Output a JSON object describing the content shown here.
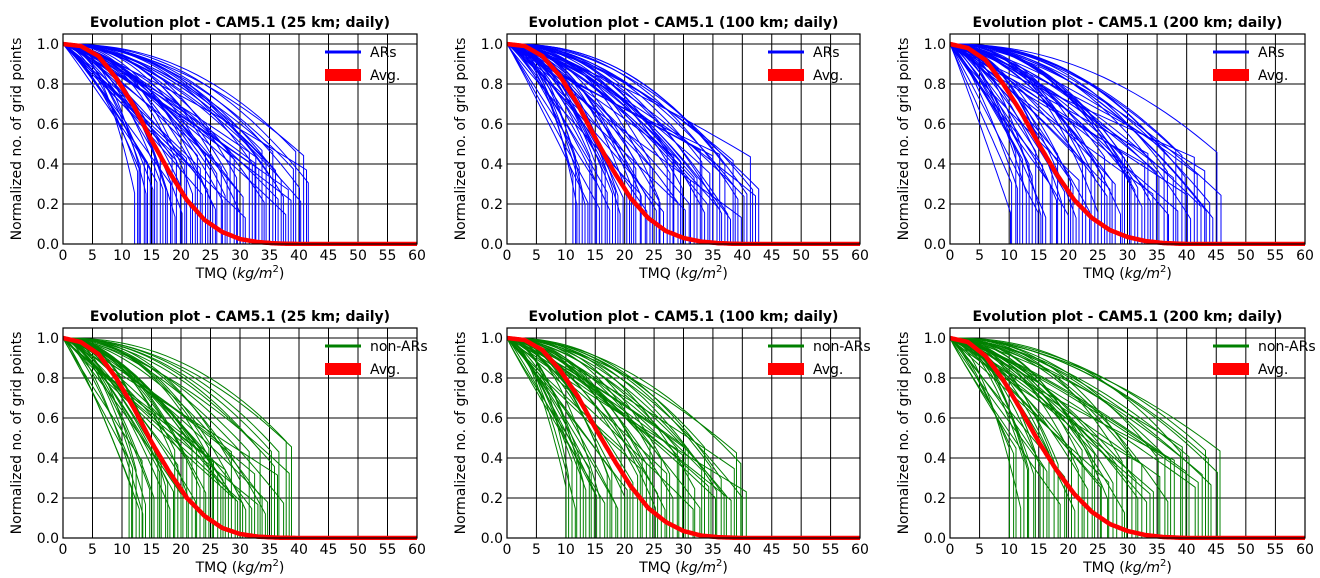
{
  "chart_data": [
    {
      "type": "line",
      "title": "Evolution plot - CAM5.1 (25 km; daily)",
      "xlabel": "TMQ (kg/m²)",
      "ylabel": "Normalized no. of grid points",
      "xlim": [
        0,
        60
      ],
      "ylim": [
        0,
        1.05
      ],
      "xticks": [
        "0",
        "5",
        "10",
        "15",
        "20",
        "25",
        "30",
        "35",
        "40",
        "45",
        "50",
        "55",
        "60"
      ],
      "yticks": [
        "0.0",
        "0.2",
        "0.4",
        "0.6",
        "0.8",
        "1.0"
      ],
      "grid": true,
      "legend_position": "top-right",
      "series": [
        {
          "name": "ARs",
          "color": "#0000ff",
          "count": 70,
          "span": [
            12,
            42
          ]
        },
        {
          "name": "Avg.",
          "color": "#ff0000",
          "x": [
            0,
            3,
            6,
            9,
            12,
            15,
            18,
            21,
            24,
            27,
            30,
            33,
            36,
            40,
            60
          ],
          "values": [
            1.0,
            0.99,
            0.94,
            0.83,
            0.69,
            0.52,
            0.36,
            0.22,
            0.12,
            0.06,
            0.025,
            0.01,
            0.003,
            0,
            0
          ]
        }
      ]
    },
    {
      "type": "line",
      "title": "Evolution plot - CAM5.1 (100 km; daily)",
      "xlabel": "TMQ (kg/m²)",
      "ylabel": "Normalized no. of grid points",
      "xlim": [
        0,
        60
      ],
      "ylim": [
        0,
        1.05
      ],
      "xticks": [
        "0",
        "5",
        "10",
        "15",
        "20",
        "25",
        "30",
        "35",
        "40",
        "45",
        "50",
        "55",
        "60"
      ],
      "yticks": [
        "0.0",
        "0.2",
        "0.4",
        "0.6",
        "0.8",
        "1.0"
      ],
      "grid": true,
      "legend_position": "top-right",
      "series": [
        {
          "name": "ARs",
          "color": "#0000ff",
          "count": 70,
          "span": [
            11,
            43
          ]
        },
        {
          "name": "Avg.",
          "color": "#ff0000",
          "x": [
            0,
            3,
            6,
            9,
            12,
            15,
            18,
            21,
            24,
            27,
            30,
            33,
            36,
            40,
            60
          ],
          "values": [
            1.0,
            0.99,
            0.94,
            0.84,
            0.7,
            0.53,
            0.37,
            0.23,
            0.13,
            0.065,
            0.03,
            0.012,
            0.004,
            0,
            0
          ]
        }
      ]
    },
    {
      "type": "line",
      "title": "Evolution plot - CAM5.1 (200 km; daily)",
      "xlabel": "TMQ (kg/m²)",
      "ylabel": "Normalized no. of grid points",
      "xlim": [
        0,
        60
      ],
      "ylim": [
        0,
        1.05
      ],
      "xticks": [
        "0",
        "5",
        "10",
        "15",
        "20",
        "25",
        "30",
        "35",
        "40",
        "45",
        "50",
        "55",
        "60"
      ],
      "yticks": [
        "0.0",
        "0.2",
        "0.4",
        "0.6",
        "0.8",
        "1.0"
      ],
      "grid": true,
      "legend_position": "top-right",
      "series": [
        {
          "name": "ARs",
          "color": "#0000ff",
          "count": 70,
          "span": [
            10,
            46
          ]
        },
        {
          "name": "Avg.",
          "color": "#ff0000",
          "x": [
            0,
            3,
            6,
            9,
            12,
            15,
            18,
            21,
            24,
            27,
            30,
            33,
            36,
            40,
            60
          ],
          "values": [
            1.0,
            0.98,
            0.92,
            0.8,
            0.66,
            0.5,
            0.35,
            0.22,
            0.13,
            0.07,
            0.035,
            0.015,
            0.005,
            0,
            0
          ]
        }
      ]
    },
    {
      "type": "line",
      "title": "Evolution plot - CAM5.1 (25 km; daily)",
      "xlabel": "TMQ (kg/m²)",
      "ylabel": "Normalized no. of grid points",
      "xlim": [
        0,
        60
      ],
      "ylim": [
        0,
        1.05
      ],
      "xticks": [
        "0",
        "5",
        "10",
        "15",
        "20",
        "25",
        "30",
        "35",
        "40",
        "45",
        "50",
        "55",
        "60"
      ],
      "yticks": [
        "0.0",
        "0.2",
        "0.4",
        "0.6",
        "0.8",
        "1.0"
      ],
      "grid": true,
      "legend_position": "top-right",
      "series": [
        {
          "name": "non-ARs",
          "color": "#008000",
          "count": 60,
          "span": [
            11,
            39
          ]
        },
        {
          "name": "Avg.",
          "color": "#ff0000",
          "x": [
            0,
            3,
            6,
            9,
            12,
            15,
            18,
            21,
            24,
            27,
            30,
            33,
            36,
            40,
            60
          ],
          "values": [
            1.0,
            0.98,
            0.92,
            0.8,
            0.65,
            0.48,
            0.33,
            0.2,
            0.11,
            0.05,
            0.02,
            0.007,
            0.002,
            0,
            0
          ]
        }
      ]
    },
    {
      "type": "line",
      "title": "Evolution plot - CAM5.1 (100 km; daily)",
      "xlabel": "TMQ (kg/m²)",
      "ylabel": "Normalized no. of grid points",
      "xlim": [
        0,
        60
      ],
      "ylim": [
        0,
        1.05
      ],
      "xticks": [
        "0",
        "5",
        "10",
        "15",
        "20",
        "25",
        "30",
        "35",
        "40",
        "45",
        "50",
        "55",
        "60"
      ],
      "yticks": [
        "0.0",
        "0.2",
        "0.4",
        "0.6",
        "0.8",
        "1.0"
      ],
      "grid": true,
      "legend_position": "top-right",
      "series": [
        {
          "name": "non-ARs",
          "color": "#008000",
          "count": 60,
          "span": [
            10,
            41
          ]
        },
        {
          "name": "Avg.",
          "color": "#ff0000",
          "x": [
            0,
            3,
            6,
            9,
            12,
            15,
            18,
            21,
            24,
            27,
            30,
            33,
            36,
            40,
            60
          ],
          "values": [
            1.0,
            0.99,
            0.94,
            0.84,
            0.71,
            0.55,
            0.4,
            0.26,
            0.15,
            0.08,
            0.035,
            0.012,
            0.004,
            0,
            0
          ]
        }
      ]
    },
    {
      "type": "line",
      "title": "Evolution plot - CAM5.1 (200 km; daily)",
      "xlabel": "TMQ (kg/m²)",
      "ylabel": "Normalized no. of grid points",
      "xlim": [
        0,
        60
      ],
      "ylim": [
        0,
        1.05
      ],
      "xticks": [
        "0",
        "5",
        "10",
        "15",
        "20",
        "25",
        "30",
        "35",
        "40",
        "45",
        "50",
        "55",
        "60"
      ],
      "yticks": [
        "0.0",
        "0.2",
        "0.4",
        "0.6",
        "0.8",
        "1.0"
      ],
      "grid": true,
      "legend_position": "top-right",
      "series": [
        {
          "name": "non-ARs",
          "color": "#008000",
          "count": 60,
          "span": [
            10,
            46
          ]
        },
        {
          "name": "Avg.",
          "color": "#ff0000",
          "x": [
            0,
            3,
            6,
            9,
            12,
            15,
            18,
            21,
            24,
            27,
            30,
            33,
            36,
            40,
            60
          ],
          "values": [
            1.0,
            0.98,
            0.91,
            0.79,
            0.64,
            0.48,
            0.34,
            0.22,
            0.13,
            0.07,
            0.035,
            0.015,
            0.005,
            0,
            0
          ]
        }
      ]
    }
  ]
}
